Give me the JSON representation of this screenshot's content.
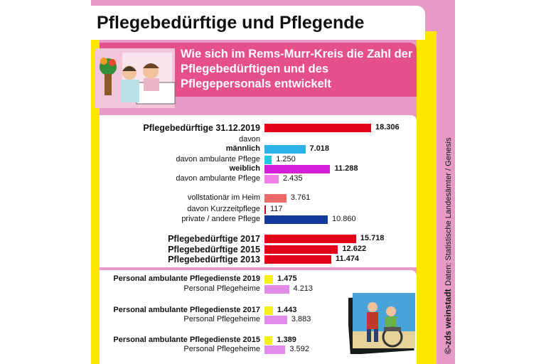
{
  "title": "Pflegebedürftige und Pflegende",
  "subtitle": "Wie sich im Rems-Murr-Kreis die Zahl der Pflegebedürftigen und des Pflegepersonals entwickelt",
  "source": "Daten: Statistische Landesämter / Genesis",
  "credit": "©-zds weinstadt",
  "colors": {
    "red": "#e3001b",
    "lightblue": "#2bb3e8",
    "cyan": "#20c8e0",
    "magenta": "#d21fd8",
    "pink": "#f07fe6",
    "salmon": "#ee6b6b",
    "darkred": "#c0001a",
    "navy": "#133a9c",
    "yellow": "#f7ef1d",
    "violet": "#e38be8"
  },
  "chart_data": {
    "type": "bar",
    "orientation": "horizontal",
    "title": "Pflegebedürftige und Pflegende",
    "groups": [
      {
        "name": "Pflegebedürftige",
        "rows": [
          {
            "label": "Pflegebedürftige 31.12.2019",
            "value": 18306,
            "display": "18.306",
            "color": "red",
            "style": "big"
          },
          {
            "label": "davon",
            "value": null,
            "display": "",
            "color": "",
            "style": "normal"
          },
          {
            "label": "männlich",
            "value": 7018,
            "display": "7.018",
            "color": "lightblue",
            "style": "bold"
          },
          {
            "label": "davon ambulante Pflege",
            "value": 1250,
            "display": "1.250",
            "color": "cyan",
            "style": "normal"
          },
          {
            "label": "weiblich",
            "value": 11288,
            "display": "11.288",
            "color": "magenta",
            "style": "bold"
          },
          {
            "label": "davon ambulante Pflege",
            "value": 2435,
            "display": "2.435",
            "color": "pink",
            "style": "normal"
          },
          {
            "label": "vollstationär im Heim",
            "value": 3761,
            "display": "3.761",
            "color": "salmon",
            "style": "normal"
          },
          {
            "label": "davon Kurzzeitpflege",
            "value": 117,
            "display": "117",
            "color": "darkred",
            "style": "normal"
          },
          {
            "label": "private / andere Pflege",
            "value": 10860,
            "display": "10.860",
            "color": "navy",
            "style": "normal"
          },
          {
            "label": "Pflegebedürftige 2017",
            "value": 15718,
            "display": "15.718",
            "color": "red",
            "style": "big"
          },
          {
            "label": "Pflegebedürftige 2015",
            "value": 12622,
            "display": "12.622",
            "color": "red",
            "style": "big"
          },
          {
            "label": "Pflegebedürftige 2013",
            "value": 11474,
            "display": "11.474",
            "color": "red",
            "style": "big"
          }
        ]
      },
      {
        "name": "Personal",
        "rows": [
          {
            "label": "Personal ambulante Pflegedienste 2019",
            "value": 1475,
            "display": "1.475",
            "color": "yellow",
            "style": "bold"
          },
          {
            "label": "Personal Pflegeheime",
            "value": 4213,
            "display": "4.213",
            "color": "violet",
            "style": "normal"
          },
          {
            "label": "Personal ambulante Pflegedienste 2017",
            "value": 1443,
            "display": "1.443",
            "color": "yellow",
            "style": "bold"
          },
          {
            "label": "Personal Pflegeheime",
            "value": 3883,
            "display": "3.883",
            "color": "violet",
            "style": "normal"
          },
          {
            "label": "Personal ambulante Pflegedienste 2015",
            "value": 1389,
            "display": "1.389",
            "color": "yellow",
            "style": "bold"
          },
          {
            "label": "Personal Pflegeheime",
            "value": 3592,
            "display": "3.592",
            "color": "violet",
            "style": "normal"
          }
        ]
      }
    ]
  }
}
